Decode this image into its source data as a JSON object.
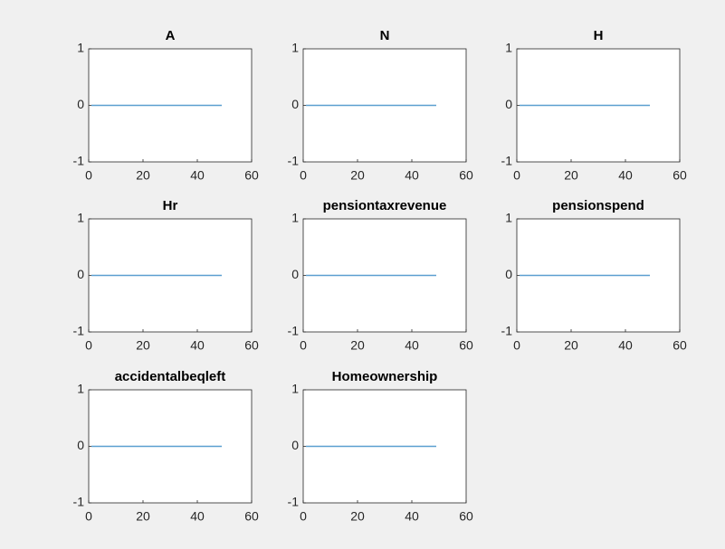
{
  "chart_data": [
    {
      "type": "line",
      "title": "A",
      "x": [
        1,
        49
      ],
      "values": [
        0,
        0
      ],
      "color": "#5b9fd0",
      "xlim": [
        0,
        60
      ],
      "xticks": [
        0,
        20,
        40,
        60
      ],
      "ylim": [
        -1,
        1
      ],
      "yticks": [
        -1,
        0,
        1
      ]
    },
    {
      "type": "line",
      "title": "N",
      "x": [
        1,
        49
      ],
      "values": [
        0,
        0
      ],
      "color": "#5b9fd0",
      "xlim": [
        0,
        60
      ],
      "xticks": [
        0,
        20,
        40,
        60
      ],
      "ylim": [
        -1,
        1
      ],
      "yticks": [
        -1,
        0,
        1
      ]
    },
    {
      "type": "line",
      "title": "H",
      "x": [
        1,
        49
      ],
      "values": [
        0,
        0
      ],
      "color": "#5b9fd0",
      "xlim": [
        0,
        60
      ],
      "xticks": [
        0,
        20,
        40,
        60
      ],
      "ylim": [
        -1,
        1
      ],
      "yticks": [
        -1,
        0,
        1
      ]
    },
    {
      "type": "line",
      "title": "Hr",
      "x": [
        1,
        49
      ],
      "values": [
        0,
        0
      ],
      "color": "#5b9fd0",
      "xlim": [
        0,
        60
      ],
      "xticks": [
        0,
        20,
        40,
        60
      ],
      "ylim": [
        -1,
        1
      ],
      "yticks": [
        -1,
        0,
        1
      ]
    },
    {
      "type": "line",
      "title": "pensiontaxrevenue",
      "x": [
        1,
        49
      ],
      "values": [
        0,
        0
      ],
      "color": "#5b9fd0",
      "xlim": [
        0,
        60
      ],
      "xticks": [
        0,
        20,
        40,
        60
      ],
      "ylim": [
        -1,
        1
      ],
      "yticks": [
        -1,
        0,
        1
      ]
    },
    {
      "type": "line",
      "title": "pensionspend",
      "x": [
        1,
        49
      ],
      "values": [
        0,
        0
      ],
      "color": "#5b9fd0",
      "xlim": [
        0,
        60
      ],
      "xticks": [
        0,
        20,
        40,
        60
      ],
      "ylim": [
        -1,
        1
      ],
      "yticks": [
        -1,
        0,
        1
      ]
    },
    {
      "type": "line",
      "title": "accidentalbeqleft",
      "x": [
        1,
        49
      ],
      "values": [
        0,
        0
      ],
      "color": "#5b9fd0",
      "xlim": [
        0,
        60
      ],
      "xticks": [
        0,
        20,
        40,
        60
      ],
      "ylim": [
        -1,
        1
      ],
      "yticks": [
        -1,
        0,
        1
      ]
    },
    {
      "type": "line",
      "title": "Homeownership",
      "x": [
        1,
        49
      ],
      "values": [
        0,
        0
      ],
      "color": "#5b9fd0",
      "xlim": [
        0,
        60
      ],
      "xticks": [
        0,
        20,
        40,
        60
      ],
      "ylim": [
        -1,
        1
      ],
      "yticks": [
        -1,
        0,
        1
      ]
    }
  ]
}
